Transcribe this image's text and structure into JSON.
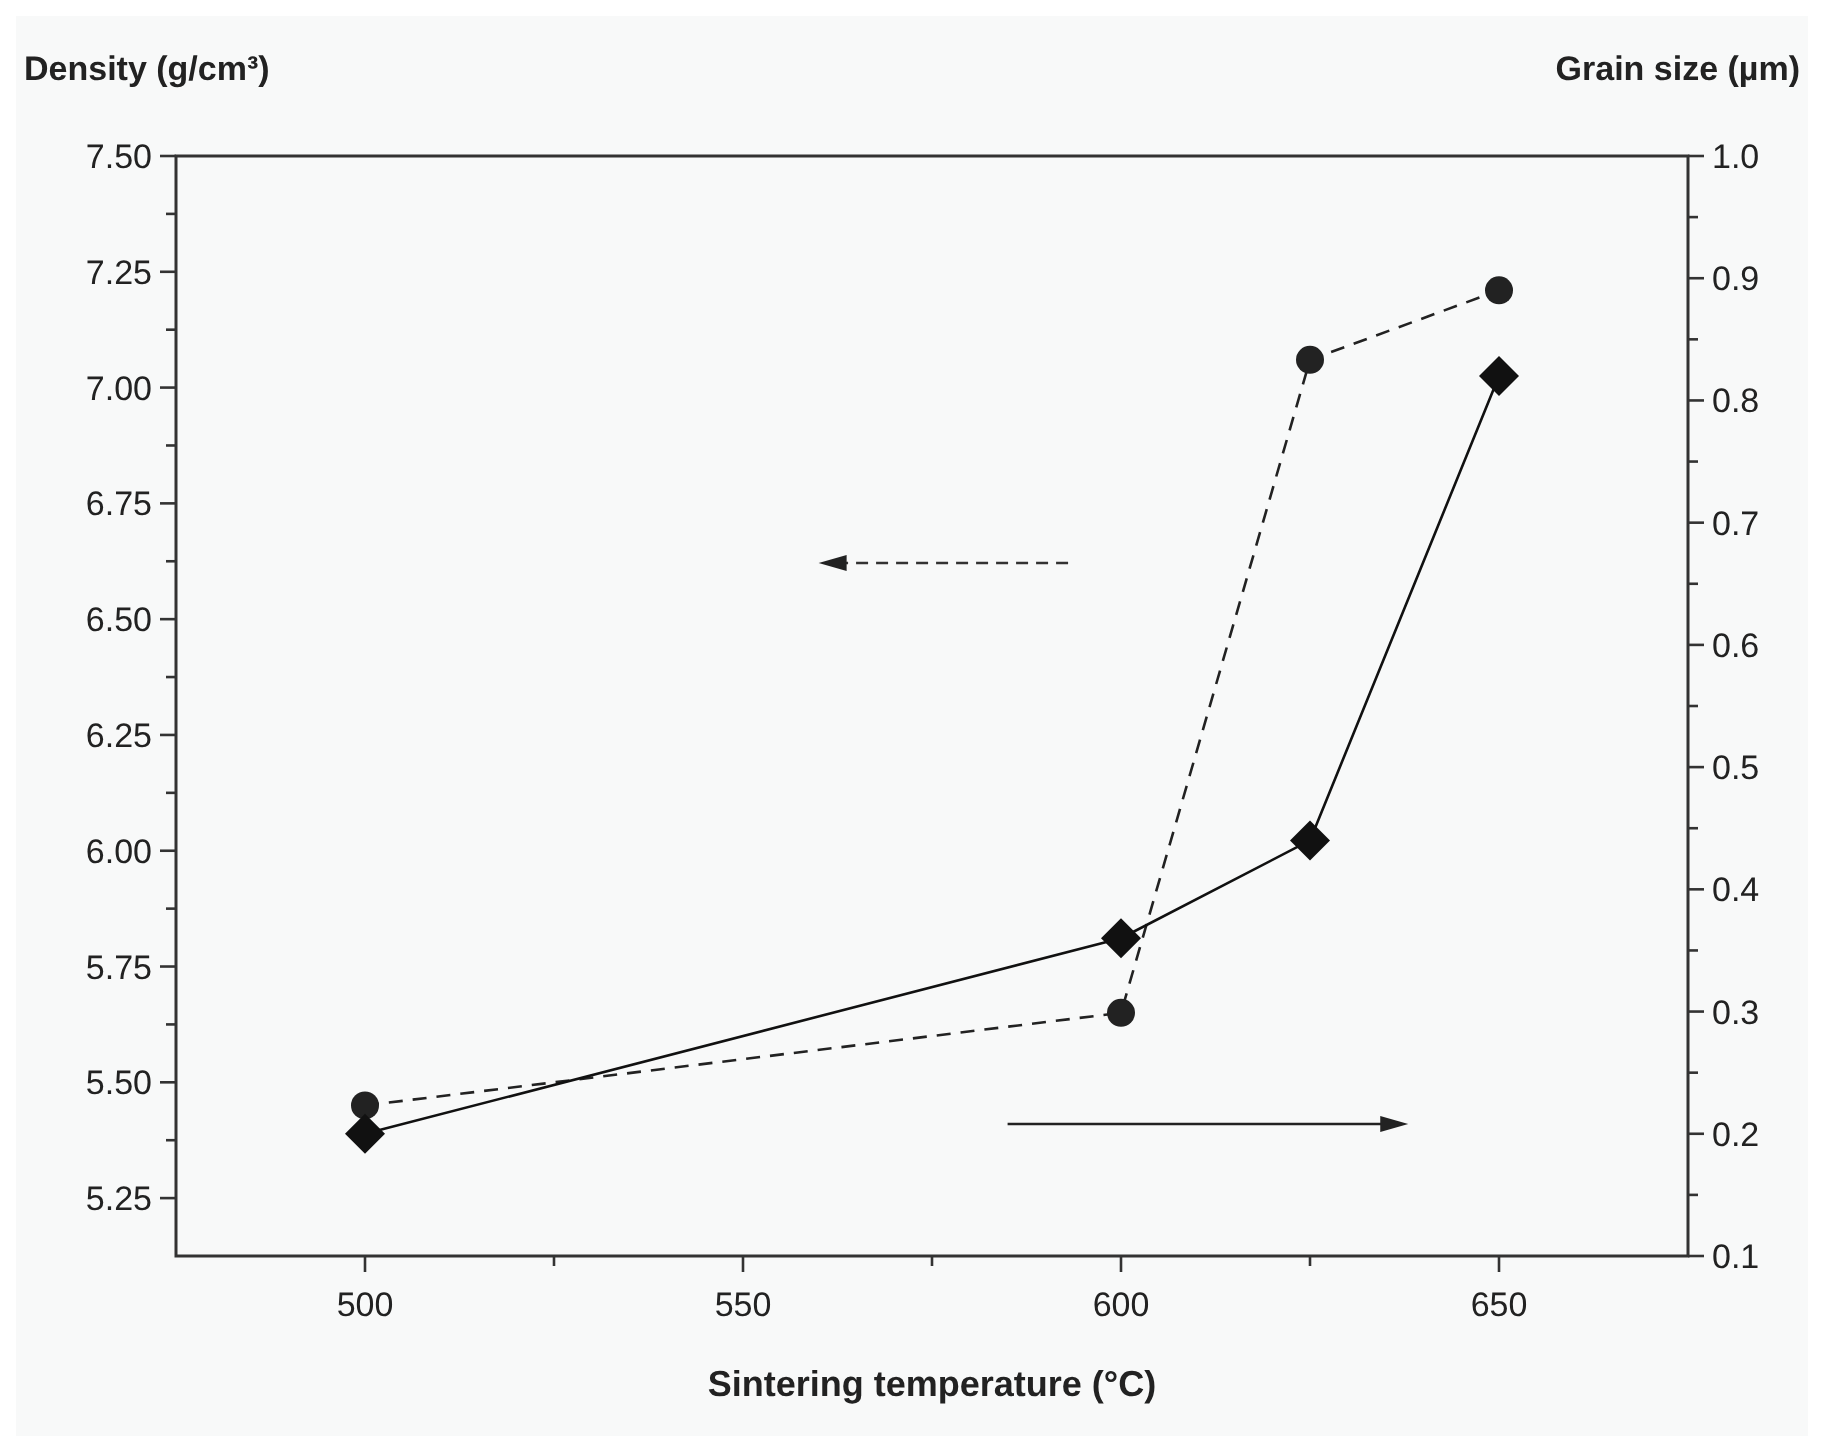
{
  "chart_data": {
    "type": "line",
    "xlabel": "Sintering temperature (°C)",
    "ylabel": "Density (g/cm³)",
    "y2label": "Grain size (µm)",
    "x": [
      500,
      600,
      625,
      650
    ],
    "series": [
      {
        "color": "#222222",
        "values": [
          5.45,
          5.65,
          7.06,
          7.21
        ],
        "marker": "circle",
        "line_style": "dashed"
      },
      {
        "color": "#111111",
        "values": [
          0.2,
          0.36,
          0.44,
          0.82
        ],
        "marker": "diamond",
        "line_style": "solid",
        "axis": "y2"
      }
    ],
    "xlim": [
      475,
      675
    ],
    "xticks": [
      500,
      {
        "value": 525,
        "label": null
      },
      550,
      {
        "value": 575,
        "label": null
      },
      600,
      {
        "value": 625,
        "label": null
      },
      650
    ],
    "ylim": [
      5.125,
      7.5
    ],
    "yticks": [
      {
        "value": 5.25,
        "label": "5.25"
      },
      {
        "value": 5.375,
        "label": null
      },
      {
        "value": 5.5,
        "label": "5.50"
      },
      {
        "value": 5.625,
        "label": null
      },
      {
        "value": 5.75,
        "label": "5.75"
      },
      {
        "value": 5.875,
        "label": null
      },
      {
        "value": 6,
        "label": "6.00"
      },
      {
        "value": 6.125,
        "label": null
      },
      {
        "value": 6.25,
        "label": "6.25"
      },
      {
        "value": 6.375,
        "label": null
      },
      {
        "value": 6.5,
        "label": "6.50"
      },
      {
        "value": 6.625,
        "label": null
      },
      {
        "value": 6.75,
        "label": "6.75"
      },
      {
        "value": 6.875,
        "label": null
      },
      {
        "value": 7,
        "label": "7.00"
      },
      {
        "value": 7.125,
        "label": null
      },
      {
        "value": 7.25,
        "label": "7.25"
      },
      {
        "value": 7.375,
        "label": null
      },
      {
        "value": 7.5,
        "label": "7.50"
      }
    ],
    "y2lim": [
      0.1,
      1.0
    ],
    "y2ticks": [
      0.1,
      {
        "value": 0.15,
        "label": null
      },
      0.2,
      {
        "value": 0.25,
        "label": null
      },
      0.3,
      {
        "value": 0.35,
        "label": null
      },
      0.4,
      {
        "value": 0.45,
        "label": null
      },
      0.5,
      {
        "value": 0.55,
        "label": null
      },
      0.6,
      {
        "value": 0.65,
        "label": null
      },
      0.7,
      {
        "value": 0.75,
        "label": null
      },
      0.8,
      {
        "value": 0.85,
        "label": null
      },
      0.9,
      {
        "value": 0.95,
        "label": null
      },
      {
        "value": 1.0,
        "label": "1.0"
      }
    ],
    "grid": false
  }
}
